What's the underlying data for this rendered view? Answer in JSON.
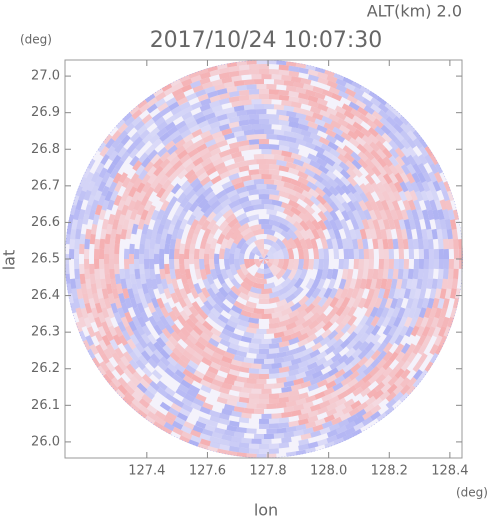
{
  "chart_data": {
    "type": "radar-ppi",
    "title": "2017/10/24 10:07:30",
    "subtitle": "ALT(km) 2.0",
    "x_label": "lon",
    "y_label": "lat",
    "x_unit": "(deg)",
    "y_unit": "(deg)",
    "xlim": [
      127.13,
      128.44
    ],
    "ylim": [
      25.956,
      27.044
    ],
    "xticks": [
      127.4,
      127.6,
      127.8,
      {
        "value": 128,
        "label": "128.0"
      },
      128.2,
      128.4
    ],
    "yticks": [
      {
        "value": 26,
        "label": "26.0"
      },
      26.1,
      26.2,
      26.3,
      26.4,
      26.5,
      26.6,
      26.7,
      26.8,
      26.9,
      {
        "value": 27,
        "label": "27.0"
      }
    ]
  }
}
